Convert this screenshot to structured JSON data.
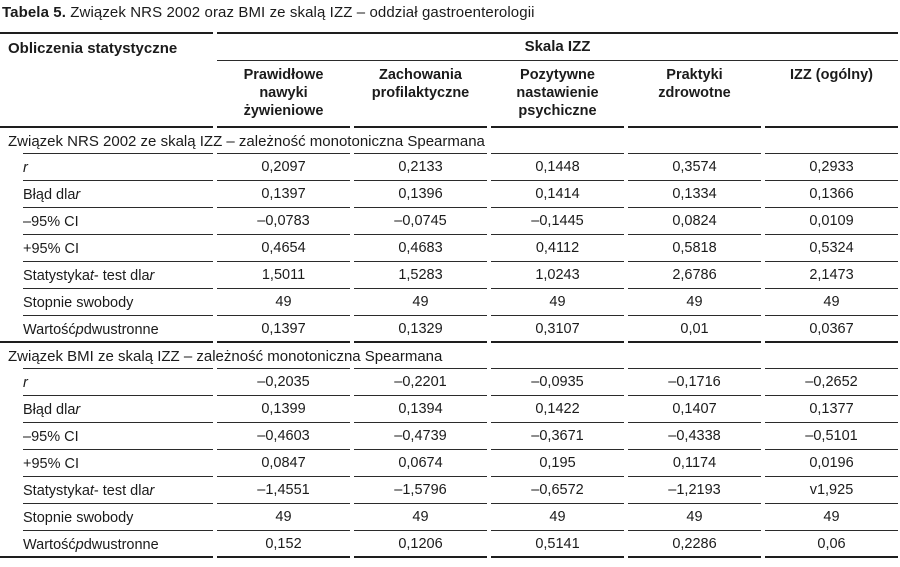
{
  "colors": {
    "text": "#1b1b1b",
    "rule_thin": "#2b2b2b",
    "rule_thick": "#1e1e1e",
    "background": "#ffffff"
  },
  "title": {
    "label": "Tabela 5.",
    "text": " Związek NRS 2002 oraz BMI ze skalą IZZ – oddział gastroenterologii"
  },
  "table": {
    "corner_header": "Obliczenia statystyczne",
    "group_header": "Skala IZZ",
    "columns": [
      {
        "lines": [
          "Prawidłowe",
          "nawyki",
          "żywieniowe"
        ]
      },
      {
        "lines": [
          "Zachowania",
          "profilaktyczne"
        ]
      },
      {
        "lines": [
          "Pozytywne",
          "nastawienie",
          "psychiczne"
        ]
      },
      {
        "lines": [
          "Praktyki",
          "zdrowotne"
        ]
      },
      {
        "lines": [
          "IZZ (ogólny)"
        ]
      }
    ],
    "sections": [
      {
        "header": "Związek NRS 2002 ze skalą  IZZ – zależność monotoniczna Spearmana",
        "rows": [
          {
            "label_parts": [
              {
                "t": "r",
                "i": true
              }
            ],
            "values": [
              "0,2097",
              "0,2133",
              "0,1448",
              "0,3574",
              "0,2933"
            ]
          },
          {
            "label_parts": [
              {
                "t": "Błąd dla "
              },
              {
                "t": "r",
                "i": true
              }
            ],
            "values": [
              "0,1397",
              "0,1396",
              "0,1414",
              "0,1334",
              "0,1366"
            ]
          },
          {
            "label_parts": [
              {
                "t": "–95% CI"
              }
            ],
            "values": [
              "–0,0783",
              "–0,0745",
              "–0,1445",
              "0,0824",
              "0,0109"
            ]
          },
          {
            "label_parts": [
              {
                "t": "+95% CI"
              }
            ],
            "values": [
              "0,4654",
              "0,4683",
              "0,4112",
              "0,5818",
              "0,5324"
            ]
          },
          {
            "label_parts": [
              {
                "t": "Statystyka "
              },
              {
                "t": "t",
                "i": true
              },
              {
                "t": "- test dla "
              },
              {
                "t": "r",
                "i": true
              }
            ],
            "values": [
              "1,5011",
              "1,5283",
              "1,0243",
              "2,6786",
              "2,1473"
            ]
          },
          {
            "label_parts": [
              {
                "t": "Stopnie swobody"
              }
            ],
            "values": [
              "49",
              "49",
              "49",
              "49",
              "49"
            ]
          },
          {
            "label_parts": [
              {
                "t": "Wartość "
              },
              {
                "t": "p",
                "i": true
              },
              {
                "t": " dwustronne"
              }
            ],
            "values": [
              "0,1397",
              "0,1329",
              "0,3107",
              "0,01",
              "0,0367"
            ]
          }
        ]
      },
      {
        "header": "Związek BMI ze skalą IZZ – zależność monotoniczna Spearmana",
        "rows": [
          {
            "label_parts": [
              {
                "t": "r",
                "i": true
              }
            ],
            "values": [
              "–0,2035",
              "–0,2201",
              "–0,0935",
              "–0,1716",
              "–0,2652"
            ]
          },
          {
            "label_parts": [
              {
                "t": "Błąd dla "
              },
              {
                "t": "r",
                "i": true
              }
            ],
            "values": [
              "0,1399",
              "0,1394",
              "0,1422",
              "0,1407",
              "0,1377"
            ]
          },
          {
            "label_parts": [
              {
                "t": "–95% CI"
              }
            ],
            "values": [
              "–0,4603",
              "–0,4739",
              "–0,3671",
              "–0,4338",
              "–0,5101"
            ]
          },
          {
            "label_parts": [
              {
                "t": "+95% CI"
              }
            ],
            "values": [
              "0,0847",
              "0,0674",
              "0,195",
              "0,1174",
              "0,0196"
            ]
          },
          {
            "label_parts": [
              {
                "t": "Statystyka "
              },
              {
                "t": "t",
                "i": true
              },
              {
                "t": "- test dla "
              },
              {
                "t": "r",
                "i": true
              }
            ],
            "values": [
              "–1,4551",
              "–1,5796",
              "–0,6572",
              "–1,2193",
              "v1,925"
            ]
          },
          {
            "label_parts": [
              {
                "t": "Stopnie swobody"
              }
            ],
            "values": [
              "49",
              "49",
              "49",
              "49",
              "49"
            ]
          },
          {
            "label_parts": [
              {
                "t": "Wartość "
              },
              {
                "t": "p",
                "i": true
              },
              {
                "t": " dwustronne"
              }
            ],
            "values": [
              "0,152",
              "0,1206",
              "0,5141",
              "0,2286",
              "0,06"
            ]
          }
        ]
      }
    ]
  }
}
